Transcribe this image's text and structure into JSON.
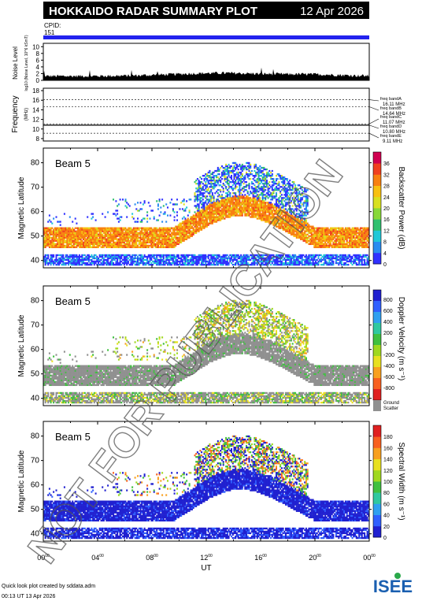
{
  "header": {
    "title": "HOKKAIDO RADAR SUMMARY PLOT",
    "date": "12 Apr 2026",
    "cpid_label": "CPID:",
    "cpid_value": "151"
  },
  "colors": {
    "header_bg": "#000000",
    "cpid_bar": "#2222ee",
    "ground_scatter": "#909090"
  },
  "noise": {
    "ylabel": "Noise Level",
    "ylabel_sub": "log10 (Noise Level, 10^6 kSmT)",
    "yticks": [
      0,
      2,
      4,
      6,
      8,
      10
    ],
    "ylim": [
      0,
      11
    ]
  },
  "frequency": {
    "ylabel": "Frequency",
    "ylabel_sub": "(MHz)",
    "yticks": [
      8,
      10,
      12,
      14,
      16,
      18
    ],
    "ylim": [
      7.5,
      18.5
    ],
    "bands": [
      {
        "label": "freq bandA",
        "value": "16.11 MHz",
        "mhz": 16.11
      },
      {
        "label": "freq bandB",
        "value": "14.64 MHz",
        "mhz": 14.64
      },
      {
        "label": "freq bandC",
        "value": "11.07 MHz",
        "mhz": 11.07
      },
      {
        "label": "freq bandD",
        "value": "10.80 MHz",
        "mhz": 10.8
      },
      {
        "label": "freq bandE",
        "value": "9.11 MHz",
        "mhz": 9.11
      }
    ]
  },
  "panels": [
    {
      "beam_label": "Beam  5",
      "ylabel": "Magnetic Latitude",
      "colorbar_label": "Backscatter Power (dB)",
      "colorbar_ticks": [
        "0",
        "4",
        "8",
        "12",
        "16",
        "20",
        "24",
        "28",
        "32",
        "36"
      ],
      "colorbar_colors": [
        "#3030ff",
        "#2a8cf0",
        "#20c8d8",
        "#30c070",
        "#88d838",
        "#d8e020",
        "#f8c010",
        "#f88010",
        "#f04020",
        "#d00050"
      ]
    },
    {
      "beam_label": "Beam  5",
      "ylabel": "Magnetic Latitude",
      "colorbar_label": "Doppler Velocity (m s⁻¹)",
      "colorbar_ticks": [
        "800",
        "600",
        "400",
        "200",
        "0",
        "-200",
        "-400",
        "-600",
        "-800"
      ],
      "colorbar_colors": [
        "#2020d0",
        "#3060ff",
        "#30a0f0",
        "#30c8a0",
        "#40c040",
        "#a0d820",
        "#e8e020",
        "#f8a020",
        "#f86020",
        "#e02020"
      ],
      "ground_label": "Ground Scatter"
    },
    {
      "beam_label": "Beam  5",
      "ylabel": "Magnetic Latitude",
      "colorbar_label": "Spectral Width (m s⁻¹)",
      "colorbar_ticks": [
        "0",
        "20",
        "40",
        "60",
        "80",
        "100",
        "120",
        "140",
        "160",
        "180"
      ],
      "colorbar_colors": [
        "#2020d0",
        "#3060ff",
        "#30a0f0",
        "#30c8a0",
        "#40c040",
        "#a0d820",
        "#e8e020",
        "#f8a020",
        "#f86020",
        "#e02020"
      ]
    }
  ],
  "chart_data": {
    "type": "heatmap",
    "xlabel": "UT",
    "x_ticks": [
      "00",
      "04",
      "08",
      "12",
      "16",
      "20",
      "00"
    ],
    "x_tick_sup": "00",
    "xlim_hours": [
      0,
      24
    ],
    "ylim_mlat": [
      37,
      86
    ],
    "y_ticks": [
      40,
      50,
      60,
      70,
      80
    ]
  },
  "watermark": "NOT FOR PUBLICATION",
  "footer": {
    "credit": "Quick look plot created by sddata.adm",
    "timestamp": "00:13 UT 13 Apr 2026",
    "logo": "ISEE"
  }
}
